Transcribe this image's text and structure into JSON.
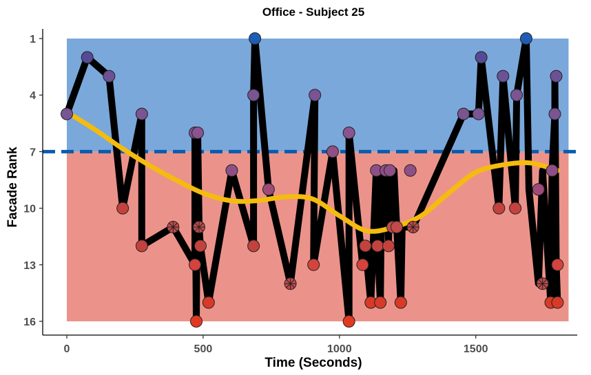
{
  "chart_data": {
    "type": "line",
    "title": "Office - Subject 25",
    "xlabel": "Time (Seconds)",
    "ylabel": "Facade Rank",
    "xlim": [
      0,
      1800
    ],
    "ylim": [
      16,
      1
    ],
    "y_reversed": true,
    "x_ticks": [
      0,
      500,
      1000,
      1500
    ],
    "x_tick_labels": [
      "0",
      "500",
      "1000",
      "1500"
    ],
    "y_ticks": [
      1,
      4,
      7,
      10,
      13,
      16
    ],
    "y_tick_labels": [
      "1",
      "4",
      "7",
      "10",
      "13",
      "16"
    ],
    "threshold": 7,
    "bands": [
      {
        "y_from": 1,
        "y_to": 7,
        "color": "#7aa8da"
      },
      {
        "y_from": 7,
        "y_to": 16,
        "color": "#eb938a"
      }
    ],
    "threshold_color": "#0b5cad",
    "series": [
      {
        "type": "line",
        "color": "#000000",
        "x": [
          0,
          75,
          155,
          205,
          275,
          275,
          390,
          470,
          470,
          475,
          480,
          485,
          490,
          520,
          605,
          685,
          685,
          690,
          740,
          820,
          910,
          905,
          975,
          1035,
          1035,
          1085,
          1095,
          1115,
          1135,
          1140,
          1150,
          1155,
          1170,
          1180,
          1185,
          1195,
          1200,
          1210,
          1225,
          1230,
          1270,
          1455,
          1510,
          1520,
          1585,
          1600,
          1645,
          1650,
          1685,
          1695,
          1730,
          1745,
          1775,
          1780,
          1790,
          1790,
          1795,
          1800
        ],
        "y": [
          5,
          2,
          3,
          10,
          5,
          12,
          11,
          13,
          6,
          16,
          6,
          11,
          12,
          15,
          8,
          12,
          4,
          1,
          9,
          14,
          4,
          13,
          7,
          16,
          6,
          13,
          12,
          15,
          8,
          12,
          15,
          8,
          8,
          12,
          8,
          11,
          8,
          11,
          15,
          11,
          11,
          5,
          5,
          2,
          10,
          3,
          10,
          4,
          1,
          9,
          14,
          8,
          15,
          8,
          5,
          3,
          13,
          15
        ]
      },
      {
        "type": "smooth",
        "color": "#f5bc0e",
        "x": [
          0,
          100,
          200,
          300,
          400,
          500,
          600,
          700,
          800,
          900,
          1000,
          1100,
          1200,
          1300,
          1400,
          1500,
          1600,
          1700,
          1800
        ],
        "y": [
          4.9,
          5.8,
          6.8,
          7.7,
          8.5,
          9.2,
          9.6,
          9.6,
          9.4,
          9.5,
          10.4,
          11.2,
          11.0,
          10.4,
          9.2,
          8.1,
          7.7,
          7.6,
          8.0
        ]
      }
    ],
    "points": [
      {
        "x": 0,
        "y": 5,
        "color": "#7a5493",
        "marker": "circle"
      },
      {
        "x": 75,
        "y": 2,
        "color": "#554a96",
        "marker": "circle"
      },
      {
        "x": 155,
        "y": 3,
        "color": "#6c5195",
        "marker": "circle"
      },
      {
        "x": 205,
        "y": 10,
        "color": "#c4423e",
        "marker": "circle"
      },
      {
        "x": 275,
        "y": 5,
        "color": "#7a5493",
        "marker": "circle"
      },
      {
        "x": 275,
        "y": 12,
        "color": "#c4423e",
        "marker": "circle"
      },
      {
        "x": 390,
        "y": 11,
        "color": "#c24a4a",
        "marker": "cross"
      },
      {
        "x": 470,
        "y": 13,
        "color": "#d4433c",
        "marker": "circle"
      },
      {
        "x": 470,
        "y": 6,
        "color": "#8a5490",
        "marker": "circle"
      },
      {
        "x": 475,
        "y": 16,
        "color": "#e23a22",
        "marker": "circle"
      },
      {
        "x": 480,
        "y": 6,
        "color": "#8a5490",
        "marker": "circle"
      },
      {
        "x": 485,
        "y": 11,
        "color": "#c24a4a",
        "marker": "cross"
      },
      {
        "x": 490,
        "y": 12,
        "color": "#c4423e",
        "marker": "circle"
      },
      {
        "x": 520,
        "y": 15,
        "color": "#d93a28",
        "marker": "circle"
      },
      {
        "x": 605,
        "y": 8,
        "color": "#8f4f86",
        "marker": "circle"
      },
      {
        "x": 685,
        "y": 12,
        "color": "#c4423e",
        "marker": "circle"
      },
      {
        "x": 685,
        "y": 4,
        "color": "#7a5493",
        "marker": "circle"
      },
      {
        "x": 690,
        "y": 1,
        "color": "#1f5db5",
        "marker": "circle"
      },
      {
        "x": 740,
        "y": 9,
        "color": "#a04a78",
        "marker": "circle"
      },
      {
        "x": 820,
        "y": 14,
        "color": "#c24a4a",
        "marker": "cross"
      },
      {
        "x": 910,
        "y": 4,
        "color": "#7a5493",
        "marker": "circle"
      },
      {
        "x": 905,
        "y": 13,
        "color": "#d4433c",
        "marker": "circle"
      },
      {
        "x": 975,
        "y": 7,
        "color": "#8f4f86",
        "marker": "circle"
      },
      {
        "x": 1035,
        "y": 16,
        "color": "#e23a22",
        "marker": "circle"
      },
      {
        "x": 1035,
        "y": 6,
        "color": "#8a5490",
        "marker": "circle"
      },
      {
        "x": 1085,
        "y": 13,
        "color": "#d4433c",
        "marker": "circle"
      },
      {
        "x": 1095,
        "y": 12,
        "color": "#c4423e",
        "marker": "circle"
      },
      {
        "x": 1115,
        "y": 15,
        "color": "#d93a28",
        "marker": "circle"
      },
      {
        "x": 1135,
        "y": 8,
        "color": "#8f4f86",
        "marker": "circle"
      },
      {
        "x": 1140,
        "y": 12,
        "color": "#c4423e",
        "marker": "circle"
      },
      {
        "x": 1150,
        "y": 15,
        "color": "#d93a28",
        "marker": "circle"
      },
      {
        "x": 1170,
        "y": 8,
        "color": "#8f4f86",
        "marker": "circle"
      },
      {
        "x": 1180,
        "y": 12,
        "color": "#c4423e",
        "marker": "circle"
      },
      {
        "x": 1185,
        "y": 8,
        "color": "#8f4f86",
        "marker": "circle"
      },
      {
        "x": 1195,
        "y": 11,
        "color": "#c24a4a",
        "marker": "circle"
      },
      {
        "x": 1210,
        "y": 11,
        "color": "#c24a4a",
        "marker": "circle"
      },
      {
        "x": 1225,
        "y": 15,
        "color": "#d93a28",
        "marker": "circle"
      },
      {
        "x": 1260,
        "y": 8,
        "color": "#8f4f86",
        "marker": "circle"
      },
      {
        "x": 1270,
        "y": 11,
        "color": "#c24a4a",
        "marker": "cross"
      },
      {
        "x": 1455,
        "y": 5,
        "color": "#7a5493",
        "marker": "circle"
      },
      {
        "x": 1510,
        "y": 5,
        "color": "#7a5493",
        "marker": "circle"
      },
      {
        "x": 1520,
        "y": 2,
        "color": "#554a96",
        "marker": "circle"
      },
      {
        "x": 1585,
        "y": 10,
        "color": "#c4423e",
        "marker": "circle"
      },
      {
        "x": 1600,
        "y": 3,
        "color": "#6c5195",
        "marker": "circle"
      },
      {
        "x": 1645,
        "y": 10,
        "color": "#c4423e",
        "marker": "circle"
      },
      {
        "x": 1650,
        "y": 4,
        "color": "#7a5493",
        "marker": "circle"
      },
      {
        "x": 1685,
        "y": 1,
        "color": "#1f5db5",
        "marker": "circle"
      },
      {
        "x": 1730,
        "y": 9,
        "color": "#a04a78",
        "marker": "circle"
      },
      {
        "x": 1745,
        "y": 14,
        "color": "#c24a4a",
        "marker": "cross"
      },
      {
        "x": 1775,
        "y": 15,
        "color": "#d93a28",
        "marker": "circle"
      },
      {
        "x": 1780,
        "y": 8,
        "color": "#8f4f86",
        "marker": "circle"
      },
      {
        "x": 1790,
        "y": 5,
        "color": "#7a5493",
        "marker": "circle"
      },
      {
        "x": 1795,
        "y": 3,
        "color": "#6c5195",
        "marker": "circle"
      },
      {
        "x": 1800,
        "y": 13,
        "color": "#d4433c",
        "marker": "circle"
      },
      {
        "x": 1800,
        "y": 15,
        "color": "#d93a28",
        "marker": "circle"
      }
    ],
    "grid": false,
    "legend": "none"
  }
}
